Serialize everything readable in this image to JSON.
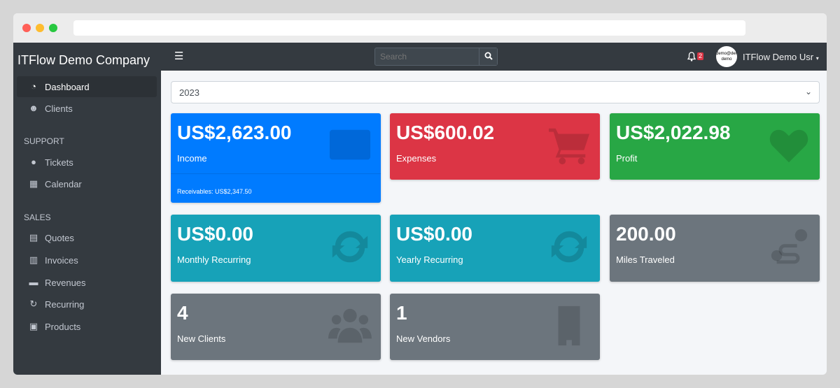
{
  "browser": {
    "url": ""
  },
  "sidebar": {
    "brand": "ITFlow Demo Company",
    "items": [
      {
        "label": "Dashboard",
        "icon": "tachometer-icon",
        "active": true
      },
      {
        "label": "Clients",
        "icon": "users-icon"
      }
    ],
    "support_header": "SUPPORT",
    "support": [
      {
        "label": "Tickets",
        "icon": "life-ring-icon"
      },
      {
        "label": "Calendar",
        "icon": "calendar-icon"
      }
    ],
    "sales_header": "SALES",
    "sales": [
      {
        "label": "Quotes",
        "icon": "file-icon"
      },
      {
        "label": "Invoices",
        "icon": "file-invoice-icon"
      },
      {
        "label": "Revenues",
        "icon": "credit-card-icon"
      },
      {
        "label": "Recurring",
        "icon": "sync-icon"
      },
      {
        "label": "Products",
        "icon": "box-icon"
      }
    ]
  },
  "topbar": {
    "search_placeholder": "Search",
    "notifications": "2",
    "avatar_text": "demo@demo demo",
    "user": "ITFlow Demo Usr"
  },
  "main": {
    "year": "2023",
    "cards": [
      {
        "value": "US$2,623.00",
        "label": "Income",
        "footer": "Receivables: US$2,347.50",
        "color": "#007bff"
      },
      {
        "value": "US$600.02",
        "label": "Expenses",
        "color": "#dc3545"
      },
      {
        "value": "US$2,022.98",
        "label": "Profit",
        "color": "#28a745"
      },
      {
        "value": "US$0.00",
        "label": "Monthly Recurring",
        "color": "#17a2b8"
      },
      {
        "value": "US$0.00",
        "label": "Yearly Recurring",
        "color": "#17a2b8"
      },
      {
        "value": "200.00",
        "label": "Miles Traveled",
        "color": "#6c757d"
      },
      {
        "value": "4",
        "label": "New Clients",
        "color": "#6c757d"
      },
      {
        "value": "1",
        "label": "New Vendors",
        "color": "#6c757d"
      }
    ]
  }
}
